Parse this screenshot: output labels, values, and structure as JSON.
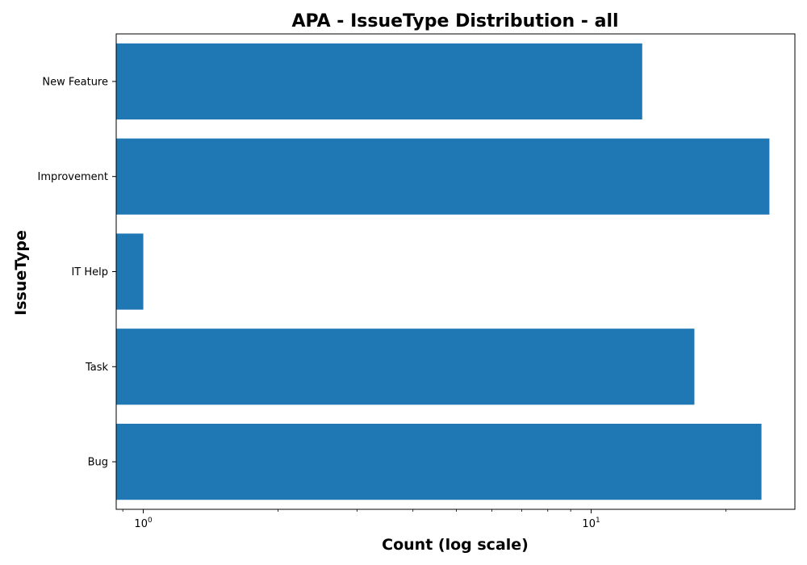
{
  "chart_data": {
    "type": "bar",
    "orientation": "horizontal",
    "title": "APA - IssueType Distribution - all",
    "xlabel": "Count (log scale)",
    "ylabel": "IssueType",
    "x_scale": "log",
    "xlim": [
      0.87,
      28.5
    ],
    "x_major_ticks": [
      {
        "value": 1,
        "base": "10",
        "exponent": "0"
      },
      {
        "value": 10,
        "base": "10",
        "exponent": "1"
      }
    ],
    "categories": [
      "New Feature",
      "Improvement",
      "IT Help",
      "Task",
      "Bug"
    ],
    "values": [
      13,
      25,
      1,
      17,
      24
    ],
    "color": "#1f77b4",
    "grid": false,
    "legend": false
  }
}
